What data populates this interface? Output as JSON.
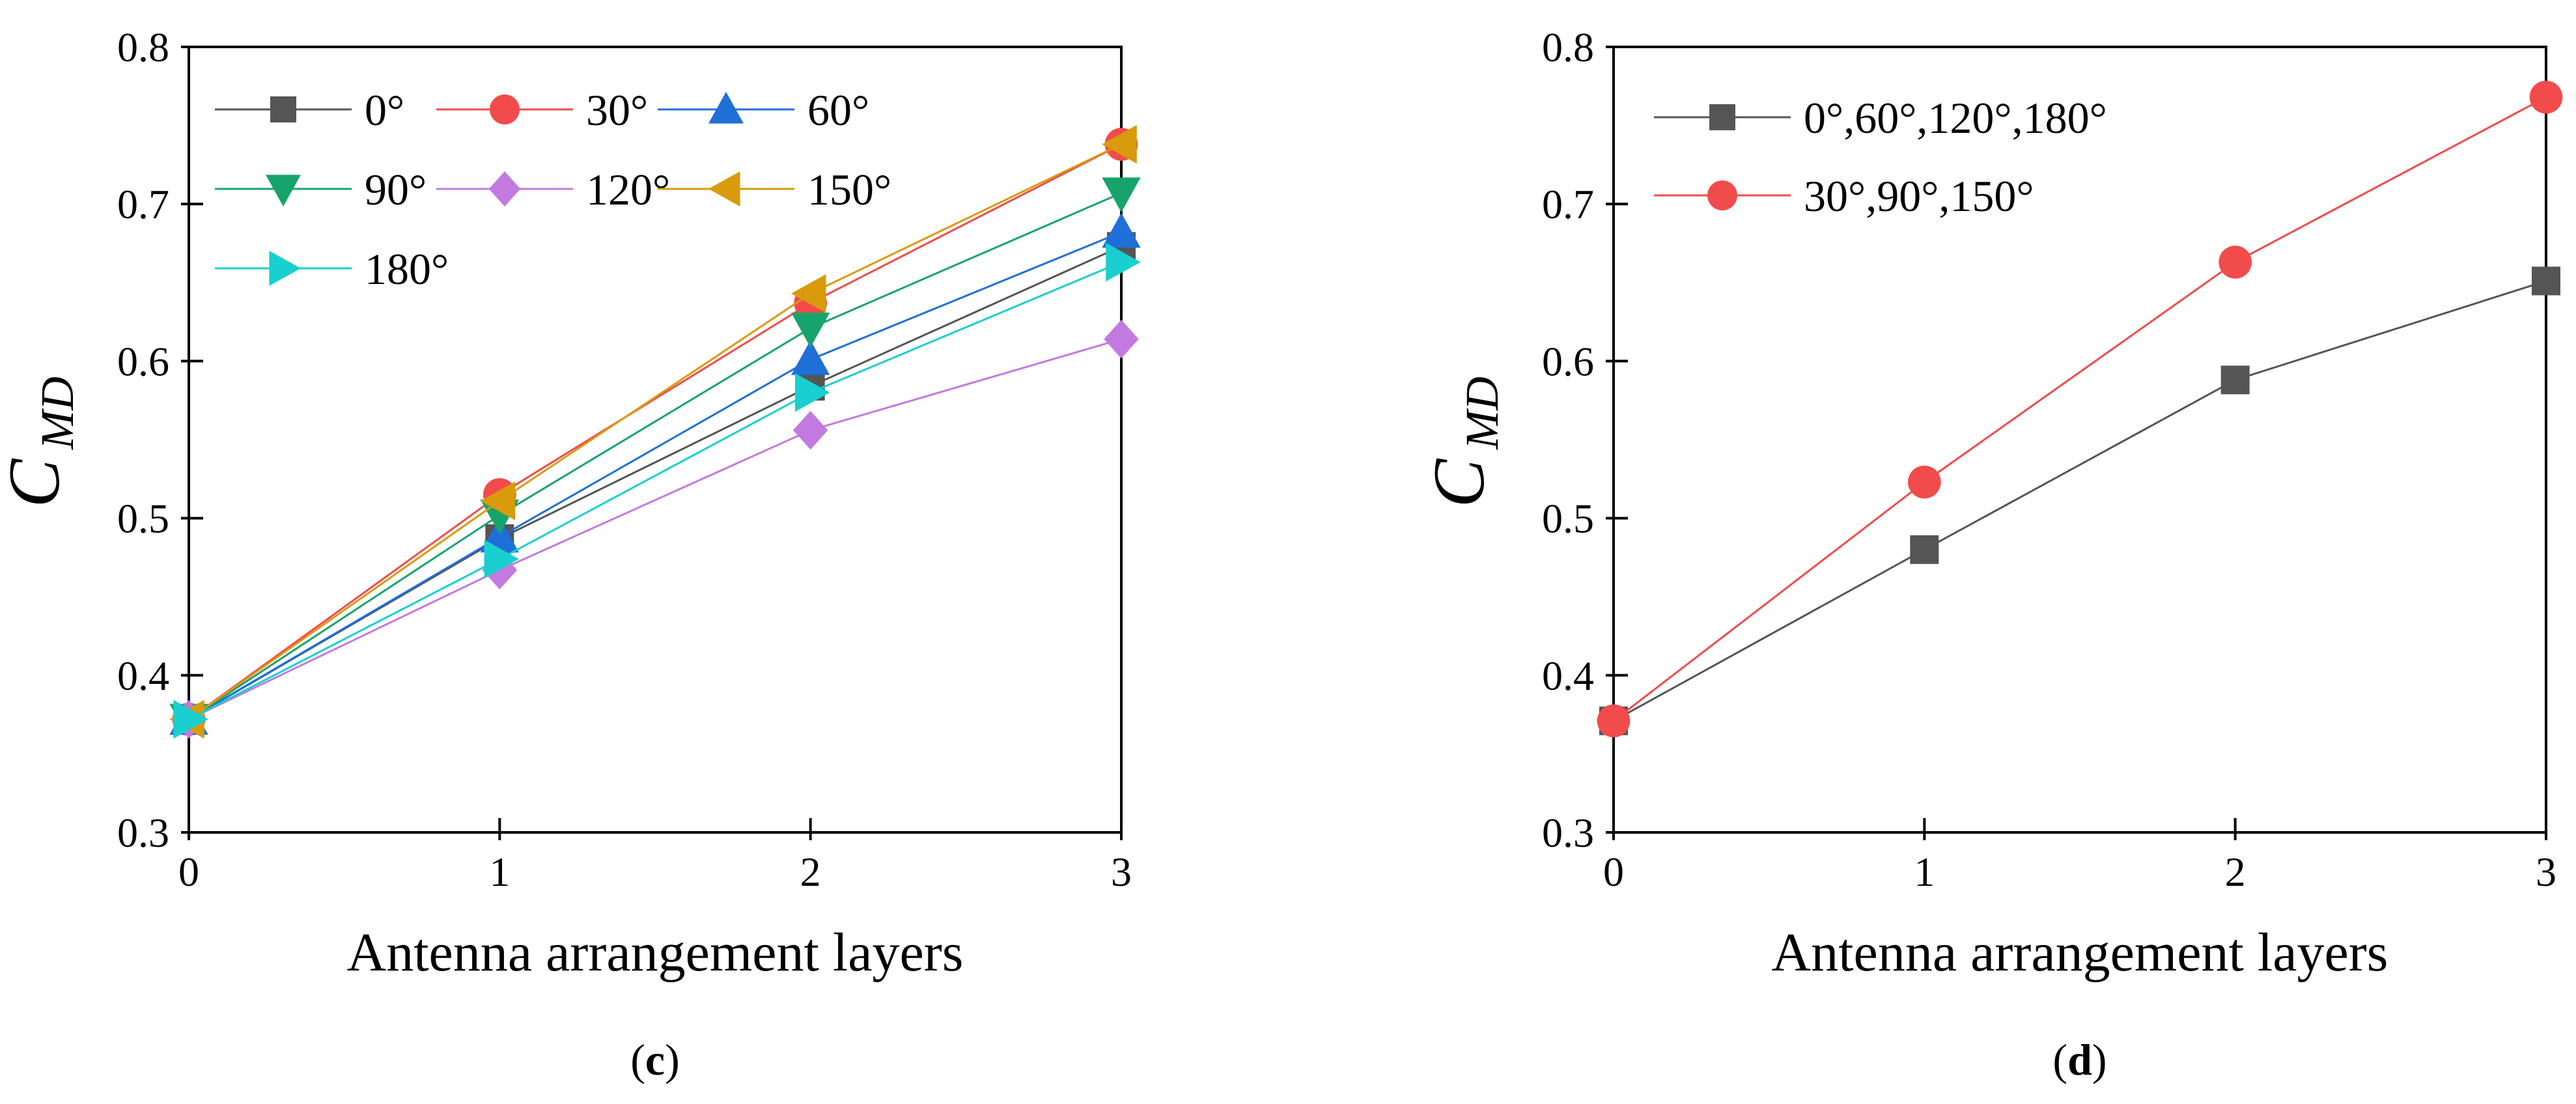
{
  "chart_data": [
    {
      "type": "line",
      "panel_label": "c",
      "xlabel": "Antenna arrangement layers",
      "ylabel_main": "C",
      "ylabel_sub": "MD",
      "x": [
        0,
        1,
        2,
        3
      ],
      "xlim": [
        0,
        3
      ],
      "ylim": [
        0.3,
        0.8
      ],
      "xticks": [
        0,
        1,
        2,
        3
      ],
      "yticks": [
        0.3,
        0.4,
        0.5,
        0.6,
        0.7,
        0.8
      ],
      "legend_placement": "top-left",
      "grid": false,
      "series": [
        {
          "name": "0°",
          "values": [
            0.372,
            0.487,
            0.584,
            0.673
          ],
          "color": "#555555",
          "marker": "square"
        },
        {
          "name": "30°",
          "values": [
            0.372,
            0.515,
            0.637,
            0.738
          ],
          "color": "#F24B4B",
          "marker": "circle"
        },
        {
          "name": "60°",
          "values": [
            0.372,
            0.488,
            0.601,
            0.682
          ],
          "color": "#1F6FD8",
          "marker": "triangle-up"
        },
        {
          "name": "90°",
          "values": [
            0.372,
            0.502,
            0.621,
            0.707
          ],
          "color": "#16A46C",
          "marker": "triangle-down"
        },
        {
          "name": "120°",
          "values": [
            0.372,
            0.467,
            0.556,
            0.614
          ],
          "color": "#C27AE0",
          "marker": "diamond"
        },
        {
          "name": "150°",
          "values": [
            0.372,
            0.511,
            0.643,
            0.738
          ],
          "color": "#D99A0C",
          "marker": "triangle-left"
        },
        {
          "name": "180°",
          "values": [
            0.372,
            0.474,
            0.58,
            0.663
          ],
          "color": "#1ACFCF",
          "marker": "triangle-right"
        }
      ]
    },
    {
      "type": "line",
      "panel_label": "d",
      "xlabel": "Antenna arrangement layers",
      "ylabel_main": "C",
      "ylabel_sub": "MD",
      "x": [
        0,
        1,
        2,
        3
      ],
      "xlim": [
        0,
        3
      ],
      "ylim": [
        0.3,
        0.8
      ],
      "xticks": [
        0,
        1,
        2,
        3
      ],
      "yticks": [
        0.3,
        0.4,
        0.5,
        0.6,
        0.7,
        0.8
      ],
      "legend_placement": "top-left",
      "grid": false,
      "series": [
        {
          "name": "0°,60°,120°,180°",
          "values": [
            0.371,
            0.48,
            0.588,
            0.651
          ],
          "color": "#555555",
          "marker": "square"
        },
        {
          "name": "30°,90°,150°",
          "values": [
            0.371,
            0.523,
            0.663,
            0.768
          ],
          "color": "#F24B4B",
          "marker": "circle"
        }
      ]
    }
  ]
}
